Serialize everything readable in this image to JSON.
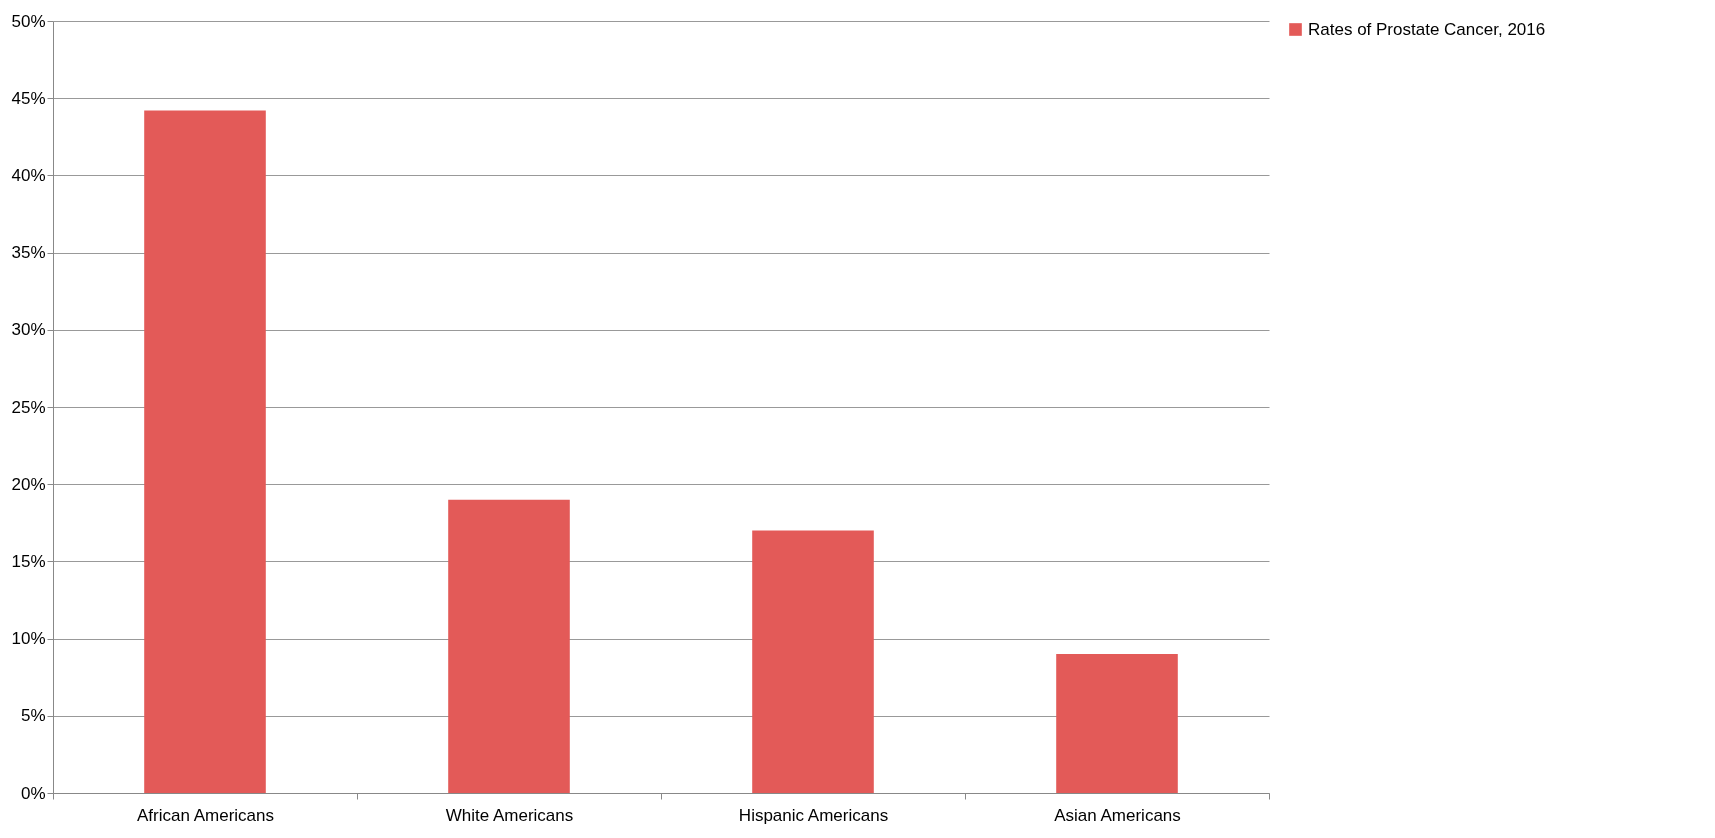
{
  "chart_data": {
    "type": "bar",
    "categories": [
      "African Americans",
      "White Americans",
      "Hispanic Americans",
      "Asian Americans"
    ],
    "series": [
      {
        "name": "Rates of Prostate Cancer, 2016",
        "color": "#e35a58",
        "values": [
          44.2,
          19,
          17,
          9
        ]
      }
    ],
    "ylim": [
      0,
      50
    ],
    "yticks": [
      {
        "value": 0,
        "label": "0%"
      },
      {
        "value": 5,
        "label": "5%"
      },
      {
        "value": 10,
        "label": "10%"
      },
      {
        "value": 15,
        "label": "15%"
      },
      {
        "value": 20,
        "label": "20%"
      },
      {
        "value": 25,
        "label": "25%"
      },
      {
        "value": 30,
        "label": "30%"
      },
      {
        "value": 35,
        "label": "35%"
      },
      {
        "value": 40,
        "label": "40%"
      },
      {
        "value": 45,
        "label": "45%"
      },
      {
        "value": 50,
        "label": "50%"
      }
    ],
    "grid": "y",
    "legend": "right"
  }
}
